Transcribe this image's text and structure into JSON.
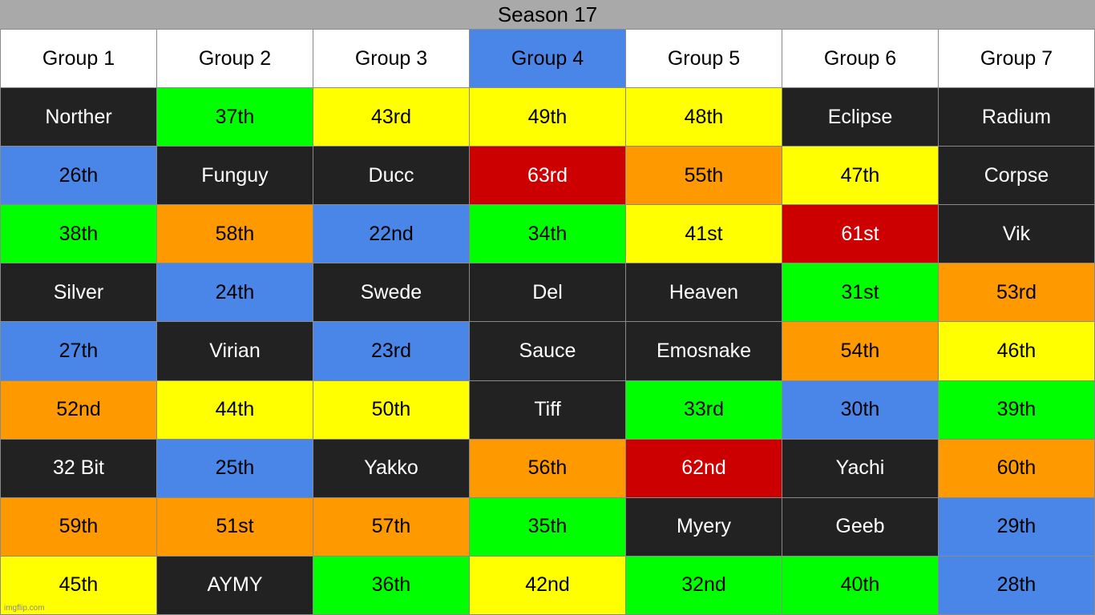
{
  "title": "Season 17",
  "colors": {
    "black": "#222222",
    "green": "#00ff00",
    "yellow": "#ffff00",
    "blue": "#4a86e8",
    "orange": "#ff9900",
    "red": "#cc0000",
    "white": "#ffffff",
    "header_highlight": "#4a86e8"
  },
  "headers": [
    {
      "label": "Group 1",
      "color": "white"
    },
    {
      "label": "Group 2",
      "color": "white"
    },
    {
      "label": "Group 3",
      "color": "white"
    },
    {
      "label": "Group 4",
      "color": "blue"
    },
    {
      "label": "Group 5",
      "color": "white"
    },
    {
      "label": "Group 6",
      "color": "white"
    },
    {
      "label": "Group 7",
      "color": "white"
    }
  ],
  "rows": [
    [
      {
        "text": "Norther",
        "color": "black"
      },
      {
        "text": "37th",
        "color": "green"
      },
      {
        "text": "43rd",
        "color": "yellow"
      },
      {
        "text": "49th",
        "color": "yellow"
      },
      {
        "text": "48th",
        "color": "yellow"
      },
      {
        "text": "Eclipse",
        "color": "black"
      },
      {
        "text": "Radium",
        "color": "black"
      }
    ],
    [
      {
        "text": "26th",
        "color": "blue"
      },
      {
        "text": "Funguy",
        "color": "black"
      },
      {
        "text": "Ducc",
        "color": "black"
      },
      {
        "text": "63rd",
        "color": "red"
      },
      {
        "text": "55th",
        "color": "orange"
      },
      {
        "text": "47th",
        "color": "yellow"
      },
      {
        "text": "Corpse",
        "color": "black"
      }
    ],
    [
      {
        "text": "38th",
        "color": "green"
      },
      {
        "text": "58th",
        "color": "orange"
      },
      {
        "text": "22nd",
        "color": "blue"
      },
      {
        "text": "34th",
        "color": "green"
      },
      {
        "text": "41st",
        "color": "yellow"
      },
      {
        "text": "61st",
        "color": "red"
      },
      {
        "text": "Vik",
        "color": "black"
      }
    ],
    [
      {
        "text": "Silver",
        "color": "black"
      },
      {
        "text": "24th",
        "color": "blue"
      },
      {
        "text": "Swede",
        "color": "black"
      },
      {
        "text": "Del",
        "color": "black"
      },
      {
        "text": "Heaven",
        "color": "black"
      },
      {
        "text": "31st",
        "color": "green"
      },
      {
        "text": "53rd",
        "color": "orange"
      }
    ],
    [
      {
        "text": "27th",
        "color": "blue"
      },
      {
        "text": "Virian",
        "color": "black"
      },
      {
        "text": "23rd",
        "color": "blue"
      },
      {
        "text": "Sauce",
        "color": "black"
      },
      {
        "text": "Emosnake",
        "color": "black"
      },
      {
        "text": "54th",
        "color": "orange"
      },
      {
        "text": "46th",
        "color": "yellow"
      }
    ],
    [
      {
        "text": "52nd",
        "color": "orange"
      },
      {
        "text": "44th",
        "color": "yellow"
      },
      {
        "text": "50th",
        "color": "yellow"
      },
      {
        "text": "Tiff",
        "color": "black"
      },
      {
        "text": "33rd",
        "color": "green"
      },
      {
        "text": "30th",
        "color": "blue"
      },
      {
        "text": "39th",
        "color": "green"
      }
    ],
    [
      {
        "text": "32 Bit",
        "color": "black"
      },
      {
        "text": "25th",
        "color": "blue"
      },
      {
        "text": "Yakko",
        "color": "black"
      },
      {
        "text": "56th",
        "color": "orange"
      },
      {
        "text": "62nd",
        "color": "red"
      },
      {
        "text": "Yachi",
        "color": "black"
      },
      {
        "text": "60th",
        "color": "orange"
      }
    ],
    [
      {
        "text": "59th",
        "color": "orange"
      },
      {
        "text": "51st",
        "color": "orange"
      },
      {
        "text": "57th",
        "color": "orange"
      },
      {
        "text": "35th",
        "color": "green"
      },
      {
        "text": "Myery",
        "color": "black"
      },
      {
        "text": "Geeb",
        "color": "black"
      },
      {
        "text": "29th",
        "color": "blue"
      }
    ],
    [
      {
        "text": "45th",
        "color": "yellow"
      },
      {
        "text": "AYMY",
        "color": "black"
      },
      {
        "text": "36th",
        "color": "green"
      },
      {
        "text": "42nd",
        "color": "yellow"
      },
      {
        "text": "32nd",
        "color": "green"
      },
      {
        "text": "40th",
        "color": "green"
      },
      {
        "text": "28th",
        "color": "blue"
      }
    ]
  ],
  "watermark": "imgflip.com"
}
